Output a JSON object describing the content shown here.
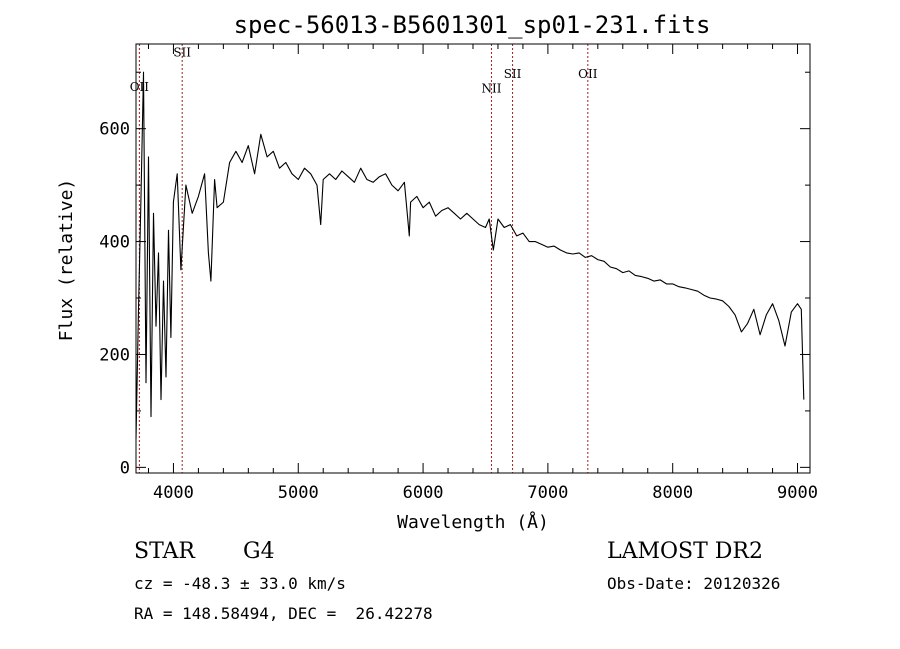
{
  "chart_data": {
    "type": "line",
    "title": "spec-56013-B5601301_sp01-231.fits",
    "xlabel": "Wavelength (Å)",
    "ylabel": "Flux (relative)",
    "xlim": [
      3700,
      9100
    ],
    "ylim": [
      -10,
      750
    ],
    "x_ticks": [
      4000,
      5000,
      6000,
      7000,
      8000,
      9000
    ],
    "y_ticks": [
      0,
      200,
      400,
      600
    ],
    "grid": false,
    "series": [
      {
        "color": "#000000",
        "x": [
          3700,
          3720,
          3740,
          3760,
          3780,
          3800,
          3820,
          3840,
          3860,
          3880,
          3900,
          3920,
          3940,
          3960,
          3980,
          4000,
          4030,
          4060,
          4100,
          4150,
          4200,
          4250,
          4280,
          4300,
          4330,
          4350,
          4400,
          4450,
          4500,
          4550,
          4600,
          4650,
          4700,
          4750,
          4800,
          4850,
          4900,
          4950,
          5000,
          5050,
          5100,
          5150,
          5180,
          5200,
          5250,
          5300,
          5350,
          5400,
          5450,
          5500,
          5550,
          5600,
          5650,
          5700,
          5750,
          5800,
          5850,
          5890,
          5900,
          5950,
          6000,
          6050,
          6100,
          6150,
          6200,
          6250,
          6300,
          6350,
          6400,
          6450,
          6500,
          6530,
          6563,
          6600,
          6650,
          6700,
          6750,
          6800,
          6850,
          6900,
          6950,
          7000,
          7050,
          7100,
          7150,
          7200,
          7250,
          7300,
          7350,
          7400,
          7450,
          7500,
          7550,
          7600,
          7650,
          7700,
          7750,
          7800,
          7850,
          7900,
          7950,
          8000,
          8050,
          8100,
          8150,
          8200,
          8250,
          8300,
          8350,
          8400,
          8450,
          8500,
          8550,
          8600,
          8650,
          8700,
          8750,
          8800,
          8850,
          8900,
          8950,
          9000,
          9030,
          9050
        ],
        "values": [
          50,
          280,
          480,
          700,
          150,
          550,
          90,
          450,
          250,
          380,
          120,
          330,
          160,
          420,
          230,
          470,
          520,
          350,
          500,
          450,
          480,
          520,
          380,
          330,
          510,
          460,
          470,
          540,
          560,
          540,
          570,
          520,
          590,
          550,
          560,
          530,
          540,
          520,
          510,
          530,
          520,
          500,
          430,
          510,
          520,
          510,
          525,
          515,
          505,
          530,
          510,
          505,
          515,
          520,
          500,
          490,
          505,
          410,
          470,
          480,
          460,
          470,
          445,
          455,
          460,
          450,
          440,
          450,
          440,
          430,
          425,
          440,
          385,
          440,
          425,
          430,
          410,
          415,
          400,
          400,
          395,
          390,
          392,
          385,
          380,
          378,
          380,
          372,
          375,
          368,
          365,
          355,
          352,
          345,
          348,
          340,
          338,
          335,
          330,
          332,
          325,
          325,
          320,
          318,
          315,
          312,
          305,
          300,
          298,
          295,
          285,
          270,
          240,
          255,
          280,
          235,
          270,
          290,
          260,
          215,
          275,
          290,
          280,
          120
        ]
      }
    ],
    "lines": [
      {
        "label": "OII",
        "x": 3727,
        "label_y": 667
      },
      {
        "label": "SII",
        "x": 4070,
        "label_y": 728
      },
      {
        "label": "NII",
        "x": 6548,
        "label_y": 664
      },
      {
        "label": "SII",
        "x": 6717,
        "label_y": 690
      },
      {
        "label": "OII",
        "x": 7320,
        "label_y": 690
      }
    ]
  },
  "info": {
    "class": "STAR",
    "subclass": "G4",
    "survey": "LAMOST DR2",
    "cz": "cz = -48.3 ± 33.0 km/s",
    "obs_date": "Obs-Date: 20120326",
    "radec": "RA = 148.58494, DEC =  26.42278"
  }
}
